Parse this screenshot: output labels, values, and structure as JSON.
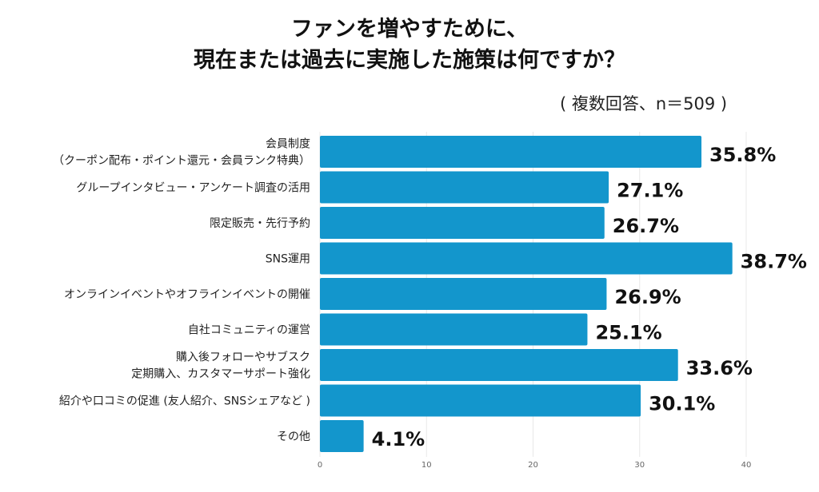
{
  "chart_data": {
    "type": "bar",
    "orientation": "horizontal",
    "title_lines": [
      "ファンを増やすために、",
      "現在または過去に実施した施策は何ですか？"
    ],
    "note": "( 複数回答、n＝509 )",
    "categories": [
      [
        "会員制度",
        "（クーポン配布・ポイント還元・会員ランク特典）"
      ],
      [
        "グループインタビュー・アンケート調査の活用"
      ],
      [
        "限定販売・先行予約"
      ],
      [
        "SNS運用"
      ],
      [
        "オンラインイベントやオフラインイベントの開催"
      ],
      [
        "自社コミュニティの運営"
      ],
      [
        "購入後フォローやサブスク",
        "定期購入、カスタマーサポート強化"
      ],
      [
        "紹介や口コミの促進 (友人紹介、SNSシェアなど )"
      ],
      [
        "その他"
      ]
    ],
    "values": [
      35.8,
      27.1,
      26.7,
      38.7,
      26.9,
      25.1,
      33.6,
      30.1,
      4.1
    ],
    "data_labels": [
      "35.8%",
      "27.1%",
      "26.7%",
      "38.7%",
      "26.9%",
      "25.1%",
      "33.6%",
      "30.1%",
      "4.1%"
    ],
    "xlim": [
      0,
      40
    ],
    "xticks": [
      "0",
      "10",
      "20",
      "30",
      "40"
    ],
    "grid": true,
    "bar_color": "#1396cc"
  }
}
